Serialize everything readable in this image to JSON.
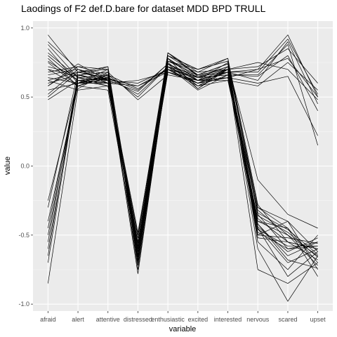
{
  "chart_data": {
    "type": "line",
    "title": "Laodings of F2 def.D.bare for dataset MDD BPD TRULL",
    "xlabel": "variable",
    "ylabel": "value",
    "categories": [
      "afraid",
      "alert",
      "attentive",
      "distressed",
      "enthusiastic",
      "excited",
      "interested",
      "nervous",
      "scared",
      "upset"
    ],
    "ylim": [
      -1.05,
      1.05
    ],
    "yticks": [
      {
        "value": 1.0,
        "label": "1.0"
      },
      {
        "value": 0.5,
        "label": "0.5"
      },
      {
        "value": 0.0,
        "label": "0.0"
      },
      {
        "value": -0.5,
        "label": "-0.5"
      },
      {
        "value": -1.0,
        "label": "-1.0"
      }
    ],
    "grid": true,
    "legend": "none",
    "panel_color": "#ebebeb",
    "line_color": "#000000",
    "series": [
      {
        "values": [
          0.95,
          0.68,
          0.63,
          -0.62,
          0.8,
          0.7,
          0.78,
          -0.28,
          -0.55,
          -0.6
        ]
      },
      {
        "values": [
          0.9,
          0.7,
          0.65,
          -0.55,
          0.78,
          0.62,
          0.75,
          -0.3,
          -0.45,
          -0.7
        ]
      },
      {
        "values": [
          0.85,
          0.6,
          0.7,
          -0.7,
          0.75,
          0.58,
          0.7,
          -0.35,
          -0.6,
          -0.55
        ]
      },
      {
        "values": [
          0.8,
          0.62,
          0.6,
          -0.5,
          0.82,
          0.65,
          0.72,
          -0.4,
          -0.5,
          -0.65
        ]
      },
      {
        "values": [
          0.75,
          0.58,
          0.55,
          -0.65,
          0.7,
          0.6,
          0.68,
          -0.45,
          -0.7,
          -0.6
        ]
      },
      {
        "values": [
          0.7,
          0.65,
          0.72,
          -0.6,
          0.76,
          0.66,
          0.74,
          -0.5,
          -0.4,
          -0.75
        ]
      },
      {
        "values": [
          0.66,
          0.7,
          0.62,
          -0.72,
          0.72,
          0.55,
          0.66,
          -0.42,
          -0.65,
          -0.55
        ]
      },
      {
        "values": [
          0.62,
          0.55,
          0.58,
          -0.58,
          0.68,
          0.62,
          0.62,
          -0.38,
          -0.55,
          -0.68
        ]
      },
      {
        "values": [
          0.58,
          0.72,
          0.66,
          -0.66,
          0.8,
          0.7,
          0.76,
          -0.55,
          -0.75,
          -0.5
        ]
      },
      {
        "values": [
          0.55,
          0.6,
          0.6,
          -0.55,
          0.74,
          0.64,
          0.7,
          -0.45,
          -0.8,
          -0.62
        ]
      },
      {
        "values": [
          0.5,
          0.68,
          0.7,
          -0.7,
          0.78,
          0.56,
          0.72,
          -0.48,
          -0.6,
          -0.58
        ]
      },
      {
        "values": [
          0.48,
          0.62,
          0.64,
          -0.62,
          0.7,
          0.6,
          0.64,
          -0.32,
          -0.5,
          -0.72
        ]
      },
      {
        "values": [
          0.72,
          0.66,
          0.62,
          -0.48,
          0.76,
          0.68,
          0.7,
          -0.6,
          -0.98,
          -0.65
        ]
      },
      {
        "values": [
          0.78,
          0.58,
          0.66,
          -0.75,
          0.72,
          0.62,
          0.68,
          -0.75,
          -0.85,
          -0.7
        ]
      },
      {
        "values": [
          0.88,
          0.64,
          0.58,
          -0.6,
          0.82,
          0.66,
          0.74,
          -0.1,
          -0.35,
          -0.45
        ]
      },
      {
        "values": [
          0.68,
          0.72,
          0.7,
          -0.68,
          0.7,
          0.58,
          0.66,
          -0.4,
          -0.45,
          -0.8
        ]
      },
      {
        "values": [
          0.64,
          0.6,
          0.62,
          -0.78,
          0.74,
          0.62,
          0.7,
          -0.52,
          -0.55,
          -0.6
        ]
      },
      {
        "values": [
          0.6,
          0.66,
          0.68,
          -0.64,
          0.78,
          0.64,
          0.72,
          -0.44,
          -0.62,
          -0.52
        ]
      },
      {
        "values": [
          0.52,
          0.7,
          0.6,
          -0.58,
          0.76,
          0.7,
          0.76,
          -0.36,
          -0.48,
          -0.66
        ]
      },
      {
        "values": [
          0.82,
          0.64,
          0.66,
          -0.66,
          0.72,
          0.6,
          0.68,
          -0.46,
          -0.58,
          -0.58
        ]
      },
      {
        "values": [
          0.7,
          0.58,
          0.64,
          -0.52,
          0.8,
          0.66,
          0.74,
          -0.3,
          -0.4,
          -0.62
        ]
      },
      {
        "values": [
          0.62,
          0.68,
          0.72,
          -0.7,
          0.74,
          0.56,
          0.7,
          -0.42,
          -0.68,
          -0.74
        ]
      },
      {
        "values": [
          0.58,
          0.74,
          0.62,
          -0.6,
          0.68,
          0.62,
          0.64,
          -0.5,
          -0.52,
          -0.56
        ]
      },
      {
        "values": [
          0.76,
          0.62,
          0.58,
          -0.56,
          0.82,
          0.68,
          0.78,
          -0.34,
          -0.46,
          -0.64
        ]
      },
      {
        "values": [
          -0.25,
          0.62,
          0.63,
          0.58,
          0.7,
          0.65,
          0.68,
          0.62,
          0.9,
          0.45
        ]
      },
      {
        "values": [
          -0.4,
          0.58,
          0.66,
          0.5,
          0.72,
          0.62,
          0.64,
          0.7,
          0.95,
          0.5
        ]
      },
      {
        "values": [
          -0.55,
          0.66,
          0.6,
          0.62,
          0.68,
          0.6,
          0.7,
          0.72,
          0.85,
          0.6
        ]
      },
      {
        "values": [
          -0.6,
          0.6,
          0.64,
          0.55,
          0.74,
          0.64,
          0.66,
          0.65,
          0.8,
          0.4
        ]
      },
      {
        "values": [
          -0.7,
          0.64,
          0.62,
          0.6,
          0.7,
          0.58,
          0.62,
          0.58,
          0.75,
          0.55
        ]
      },
      {
        "values": [
          -0.85,
          0.56,
          0.68,
          0.48,
          0.66,
          0.62,
          0.68,
          0.68,
          0.92,
          0.52
        ]
      },
      {
        "values": [
          -0.3,
          0.68,
          0.64,
          0.52,
          0.72,
          0.66,
          0.7,
          0.75,
          0.7,
          0.48
        ]
      },
      {
        "values": [
          -0.45,
          0.62,
          0.6,
          0.58,
          0.68,
          0.6,
          0.64,
          0.6,
          0.65,
          0.22
        ]
      },
      {
        "values": [
          -0.5,
          0.6,
          0.66,
          0.56,
          0.7,
          0.64,
          0.66,
          0.66,
          0.88,
          0.15
        ]
      },
      {
        "values": [
          -0.65,
          0.66,
          0.62,
          0.54,
          0.74,
          0.62,
          0.68,
          0.7,
          0.78,
          0.5
        ]
      }
    ]
  }
}
